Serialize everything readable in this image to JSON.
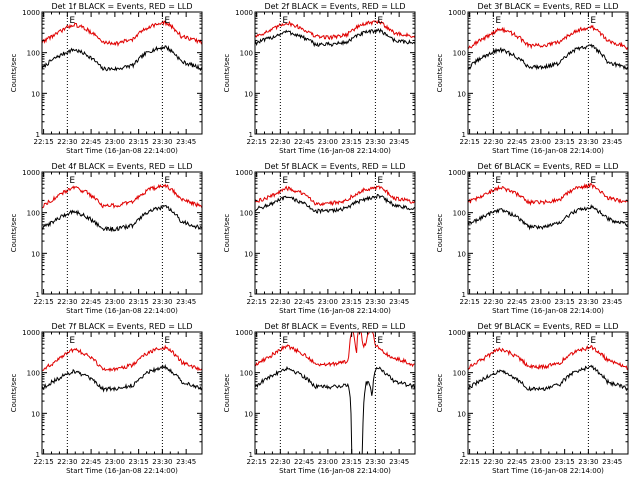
{
  "figure": {
    "background": "#ffffff",
    "colors": {
      "events": "#000000",
      "lld": "#e00000",
      "vline": "#000000"
    }
  },
  "chart_data": [
    {
      "type": "line",
      "panel": "det1",
      "title": "Det 1f BLACK = Events, RED = LLD",
      "xlabel": "Start Time (16-Jan-08 22:14:00)",
      "ylabel": "Counts/sec",
      "x_ticks": [
        "22:15",
        "22:30",
        "22:45",
        "23:00",
        "23:15",
        "23:30",
        "23:45"
      ],
      "y_ticks": [
        "1",
        "10",
        "100",
        "1000"
      ],
      "yscale": "log",
      "ylim": [
        1,
        1000
      ],
      "xlim_minutes": [
        0,
        101
      ],
      "vlines_minutes": [
        16,
        76
      ],
      "annotations": [
        "E",
        "E"
      ],
      "series": [
        {
          "name": "Events",
          "x": [
            0,
            10,
            20,
            28,
            38,
            48,
            58,
            68,
            78,
            88,
            101
          ],
          "y": [
            40,
            80,
            120,
            90,
            40,
            40,
            50,
            110,
            140,
            60,
            40
          ]
        },
        {
          "name": "LLD",
          "x": [
            0,
            10,
            20,
            28,
            38,
            48,
            58,
            68,
            78,
            88,
            101
          ],
          "y": [
            180,
            300,
            500,
            380,
            180,
            170,
            220,
            450,
            550,
            250,
            180
          ]
        }
      ]
    },
    {
      "type": "line",
      "panel": "det2",
      "title": "Det 2f BLACK = Events, RED = LLD",
      "xlabel": "Start Time (16-Jan-08 22:14:00)",
      "ylabel": "Counts/sec",
      "x_ticks": [
        "22:15",
        "22:30",
        "22:45",
        "23:00",
        "23:15",
        "23:30",
        "23:45"
      ],
      "y_ticks": [
        "1",
        "10",
        "100",
        "1000"
      ],
      "yscale": "log",
      "ylim": [
        1,
        1000
      ],
      "xlim_minutes": [
        0,
        101
      ],
      "vlines_minutes": [
        16,
        76
      ],
      "annotations": [
        "E",
        "E"
      ],
      "series": [
        {
          "name": "Events",
          "x": [
            0,
            10,
            20,
            28,
            38,
            48,
            58,
            68,
            78,
            88,
            101
          ],
          "y": [
            170,
            230,
            330,
            260,
            160,
            160,
            180,
            300,
            360,
            200,
            170
          ]
        },
        {
          "name": "LLD",
          "x": [
            0,
            10,
            20,
            28,
            38,
            48,
            58,
            68,
            78,
            88,
            101
          ],
          "y": [
            250,
            350,
            550,
            420,
            250,
            240,
            280,
            500,
            580,
            300,
            250
          ]
        }
      ]
    },
    {
      "type": "line",
      "panel": "det3",
      "title": "Det 3f BLACK = Events, RED = LLD",
      "xlabel": "Start Time (16-Jan-08 22:14:00)",
      "ylabel": "Counts/sec",
      "x_ticks": [
        "22:15",
        "22:30",
        "22:45",
        "23:00",
        "23:15",
        "23:30",
        "23:45"
      ],
      "y_ticks": [
        "1",
        "10",
        "100",
        "1000"
      ],
      "yscale": "log",
      "ylim": [
        1,
        1000
      ],
      "xlim_minutes": [
        0,
        101
      ],
      "vlines_minutes": [
        16,
        76
      ],
      "annotations": [
        "E",
        "E"
      ],
      "series": [
        {
          "name": "Events",
          "x": [
            0,
            10,
            20,
            28,
            38,
            48,
            58,
            68,
            78,
            88,
            101
          ],
          "y": [
            40,
            80,
            120,
            90,
            45,
            45,
            55,
            120,
            150,
            60,
            40
          ]
        },
        {
          "name": "LLD",
          "x": [
            0,
            10,
            20,
            28,
            38,
            48,
            58,
            68,
            78,
            88,
            101
          ],
          "y": [
            130,
            220,
            380,
            300,
            150,
            150,
            180,
            350,
            430,
            200,
            130
          ]
        }
      ]
    },
    {
      "type": "line",
      "panel": "det4",
      "title": "Det 4f BLACK = Events, RED = LLD",
      "xlabel": "Start Time (16-Jan-08 22:14:00)",
      "ylabel": "Counts/sec",
      "x_ticks": [
        "22:15",
        "22:30",
        "22:45",
        "23:00",
        "23:15",
        "23:30",
        "23:45"
      ],
      "y_ticks": [
        "1",
        "10",
        "100",
        "1000"
      ],
      "yscale": "log",
      "ylim": [
        1,
        1000
      ],
      "xlim_minutes": [
        0,
        101
      ],
      "vlines_minutes": [
        16,
        76
      ],
      "annotations": [
        "E",
        "E"
      ],
      "series": [
        {
          "name": "Events",
          "x": [
            0,
            10,
            20,
            28,
            38,
            48,
            58,
            68,
            78,
            88,
            101
          ],
          "y": [
            40,
            70,
            110,
            80,
            40,
            40,
            50,
            110,
            140,
            60,
            40
          ]
        },
        {
          "name": "LLD",
          "x": [
            0,
            10,
            20,
            28,
            38,
            48,
            58,
            68,
            78,
            88,
            101
          ],
          "y": [
            140,
            250,
            420,
            320,
            150,
            150,
            190,
            380,
            460,
            210,
            140
          ]
        }
      ]
    },
    {
      "type": "line",
      "panel": "det5",
      "title": "Det 5f BLACK = Events, RED = LLD",
      "xlabel": "Start Time (16-Jan-08 22:14:00)",
      "ylabel": "Counts/sec",
      "x_ticks": [
        "22:15",
        "22:30",
        "22:45",
        "23:00",
        "23:15",
        "23:30",
        "23:45"
      ],
      "y_ticks": [
        "1",
        "10",
        "100",
        "1000"
      ],
      "yscale": "log",
      "ylim": [
        1,
        1000
      ],
      "xlim_minutes": [
        0,
        101
      ],
      "vlines_minutes": [
        16,
        76
      ],
      "annotations": [
        "E",
        "E"
      ],
      "series": [
        {
          "name": "Events",
          "x": [
            0,
            10,
            20,
            28,
            38,
            48,
            58,
            68,
            78,
            88,
            101
          ],
          "y": [
            120,
            160,
            240,
            190,
            110,
            110,
            130,
            210,
            260,
            150,
            120
          ]
        },
        {
          "name": "LLD",
          "x": [
            0,
            10,
            20,
            28,
            38,
            48,
            58,
            68,
            78,
            88,
            101
          ],
          "y": [
            180,
            250,
            400,
            320,
            170,
            170,
            200,
            360,
            420,
            230,
            180
          ]
        }
      ]
    },
    {
      "type": "line",
      "panel": "det6",
      "title": "Det 6f BLACK = Events, RED = LLD",
      "xlabel": "Start Time (16-Jan-08 22:14:00)",
      "ylabel": "Counts/sec",
      "x_ticks": [
        "22:15",
        "22:30",
        "22:45",
        "23:00",
        "23:15",
        "23:30",
        "23:45"
      ],
      "y_ticks": [
        "1",
        "10",
        "100",
        "1000"
      ],
      "yscale": "log",
      "ylim": [
        1,
        1000
      ],
      "xlim_minutes": [
        0,
        101
      ],
      "vlines_minutes": [
        16,
        76
      ],
      "annotations": [
        "E",
        "E"
      ],
      "series": [
        {
          "name": "Events",
          "x": [
            0,
            10,
            20,
            28,
            38,
            48,
            58,
            68,
            78,
            88,
            101
          ],
          "y": [
            50,
            80,
            120,
            90,
            45,
            45,
            55,
            110,
            140,
            70,
            50
          ]
        },
        {
          "name": "LLD",
          "x": [
            0,
            10,
            20,
            28,
            38,
            48,
            58,
            68,
            78,
            88,
            101
          ],
          "y": [
            180,
            260,
            420,
            330,
            180,
            180,
            210,
            400,
            480,
            230,
            180
          ]
        }
      ]
    },
    {
      "type": "line",
      "panel": "det7",
      "title": "Det 7f BLACK = Events, RED = LLD",
      "xlabel": "Start Time (16-Jan-08 22:14:00)",
      "ylabel": "Counts/sec",
      "x_ticks": [
        "22:15",
        "22:30",
        "22:45",
        "23:00",
        "23:15",
        "23:30",
        "23:45"
      ],
      "y_ticks": [
        "1",
        "10",
        "100",
        "1000"
      ],
      "yscale": "log",
      "ylim": [
        1,
        1000
      ],
      "xlim_minutes": [
        0,
        101
      ],
      "vlines_minutes": [
        16,
        76
      ],
      "annotations": [
        "E",
        "E"
      ],
      "series": [
        {
          "name": "Events",
          "x": [
            0,
            10,
            20,
            28,
            38,
            48,
            58,
            68,
            78,
            88,
            101
          ],
          "y": [
            40,
            70,
            110,
            80,
            40,
            40,
            50,
            110,
            140,
            60,
            40
          ]
        },
        {
          "name": "LLD",
          "x": [
            0,
            10,
            20,
            28,
            38,
            48,
            58,
            68,
            78,
            88,
            101
          ],
          "y": [
            110,
            200,
            380,
            280,
            120,
            120,
            160,
            330,
            420,
            180,
            110
          ]
        }
      ]
    },
    {
      "type": "line",
      "panel": "det8",
      "title": "Det 8f BLACK = Events, RED = LLD",
      "xlabel": "Start Time (16-Jan-08 22:14:00)",
      "ylabel": "Counts/sec",
      "x_ticks": [
        "22:15",
        "22:30",
        "22:45",
        "23:00",
        "23:15",
        "23:30",
        "23:45"
      ],
      "y_ticks": [
        "1",
        "10",
        "100",
        "1000"
      ],
      "yscale": "log",
      "ylim": [
        1,
        1000
      ],
      "xlim_minutes": [
        0,
        101
      ],
      "vlines_minutes": [
        16,
        76
      ],
      "annotations": [
        "E",
        "E"
      ],
      "series": [
        {
          "name": "Events",
          "x": [
            0,
            10,
            20,
            28,
            38,
            48,
            57,
            59,
            61,
            65,
            68,
            70,
            72,
            74,
            76,
            78,
            82,
            88,
            101
          ],
          "y": [
            45,
            80,
            130,
            95,
            45,
            45,
            48,
            50,
            1,
            1,
            1,
            55,
            60,
            25,
            120,
            140,
            100,
            60,
            45
          ]
        },
        {
          "name": "LLD",
          "x": [
            0,
            10,
            20,
            28,
            38,
            48,
            57,
            59,
            61,
            62,
            64,
            65,
            67,
            68,
            70,
            72,
            74,
            76,
            78,
            82,
            88,
            101
          ],
          "y": [
            150,
            260,
            450,
            330,
            160,
            160,
            190,
            200,
            1000,
            1000,
            200,
            1000,
            1000,
            450,
            480,
            1000,
            1000,
            500,
            380,
            300,
            230,
            150
          ]
        }
      ]
    },
    {
      "type": "line",
      "panel": "det9",
      "title": "Det 9f BLACK = Events, RED = LLD",
      "xlabel": "Start Time (16-Jan-08 22:14:00)",
      "ylabel": "Counts/sec",
      "x_ticks": [
        "22:15",
        "22:30",
        "22:45",
        "23:00",
        "23:15",
        "23:30",
        "23:45"
      ],
      "y_ticks": [
        "1",
        "10",
        "100",
        "1000"
      ],
      "yscale": "log",
      "ylim": [
        1,
        1000
      ],
      "xlim_minutes": [
        0,
        101
      ],
      "vlines_minutes": [
        16,
        76
      ],
      "annotations": [
        "E",
        "E"
      ],
      "series": [
        {
          "name": "Events",
          "x": [
            0,
            10,
            20,
            28,
            38,
            48,
            58,
            68,
            78,
            88,
            101
          ],
          "y": [
            40,
            70,
            110,
            80,
            40,
            40,
            50,
            110,
            140,
            60,
            40
          ]
        },
        {
          "name": "LLD",
          "x": [
            0,
            10,
            20,
            28,
            38,
            48,
            58,
            68,
            78,
            88,
            101
          ],
          "y": [
            130,
            220,
            380,
            290,
            140,
            140,
            170,
            340,
            430,
            200,
            130
          ]
        }
      ]
    }
  ]
}
